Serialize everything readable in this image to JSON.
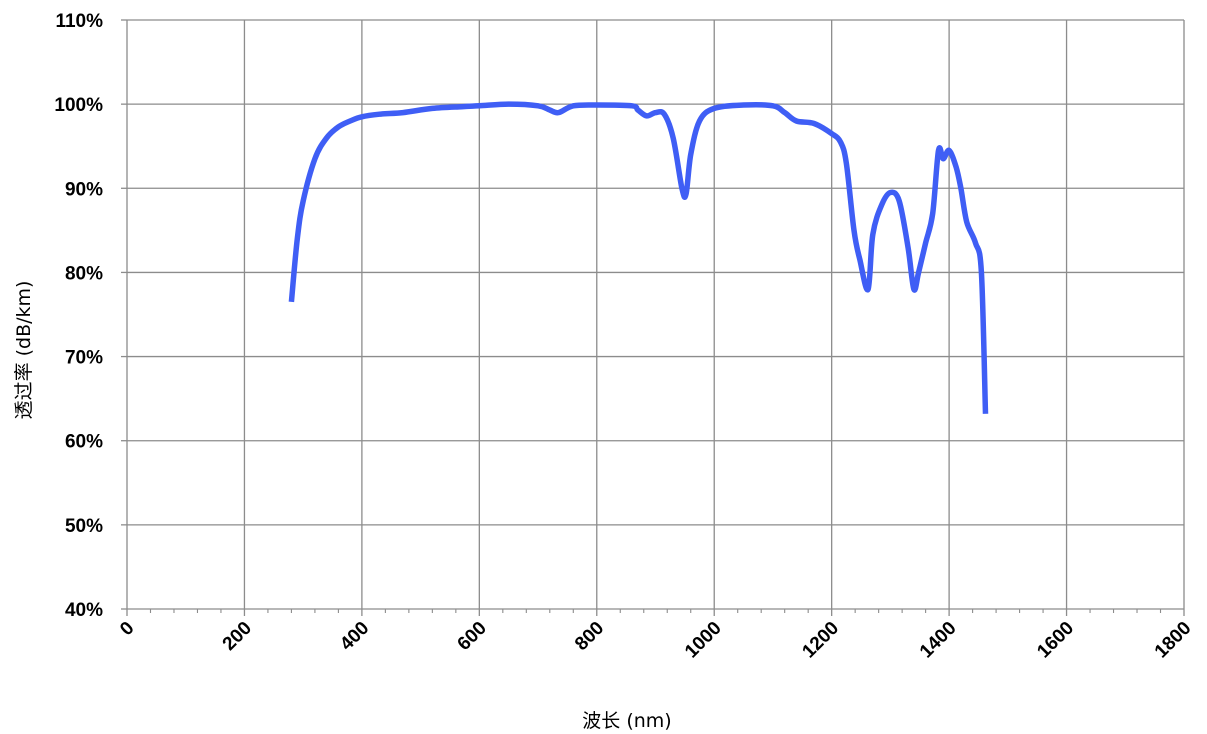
{
  "chart_data": {
    "type": "line",
    "title": "",
    "xlabel": "波长 (nm)",
    "ylabel": "透过率 (dB/km)",
    "xlim": [
      0,
      1800
    ],
    "ylim": [
      0.4,
      1.1
    ],
    "x_ticks": [
      "0",
      "200",
      "400",
      "600",
      "800",
      "1000",
      "1200",
      "1400",
      "1600",
      "1800"
    ],
    "y_ticks": [
      "40%",
      "50%",
      "60%",
      "70%",
      "80%",
      "90%",
      "100%",
      "110%"
    ],
    "grid": true,
    "legend": "none",
    "series_color": "#3f5ef5",
    "series": [
      {
        "x": [
          280,
          290,
          300,
          320,
          340,
          360,
          380,
          400,
          430,
          470,
          520,
          570,
          600,
          650,
          700,
          720,
          735,
          760,
          800,
          860,
          870,
          885,
          900,
          915,
          930,
          945,
          952,
          960,
          975,
          1000,
          1050,
          1100,
          1120,
          1140,
          1170,
          1200,
          1215,
          1225,
          1238,
          1248,
          1262,
          1270,
          1285,
          1300,
          1315,
          1330,
          1340,
          1348,
          1360,
          1372,
          1382,
          1390,
          1400,
          1412,
          1420,
          1430,
          1445,
          1455,
          1462
        ],
        "y": [
          0.765,
          0.84,
          0.885,
          0.935,
          0.96,
          0.973,
          0.98,
          0.985,
          0.988,
          0.99,
          0.995,
          0.997,
          0.998,
          1.0,
          0.998,
          0.993,
          0.99,
          0.998,
          0.999,
          0.998,
          0.993,
          0.986,
          0.99,
          0.988,
          0.96,
          0.9,
          0.893,
          0.94,
          0.98,
          0.995,
          0.999,
          0.998,
          0.99,
          0.98,
          0.977,
          0.965,
          0.955,
          0.93,
          0.85,
          0.815,
          0.78,
          0.845,
          0.88,
          0.895,
          0.885,
          0.83,
          0.78,
          0.8,
          0.835,
          0.87,
          0.945,
          0.935,
          0.945,
          0.925,
          0.9,
          0.86,
          0.835,
          0.8,
          0.632
        ]
      }
    ]
  }
}
